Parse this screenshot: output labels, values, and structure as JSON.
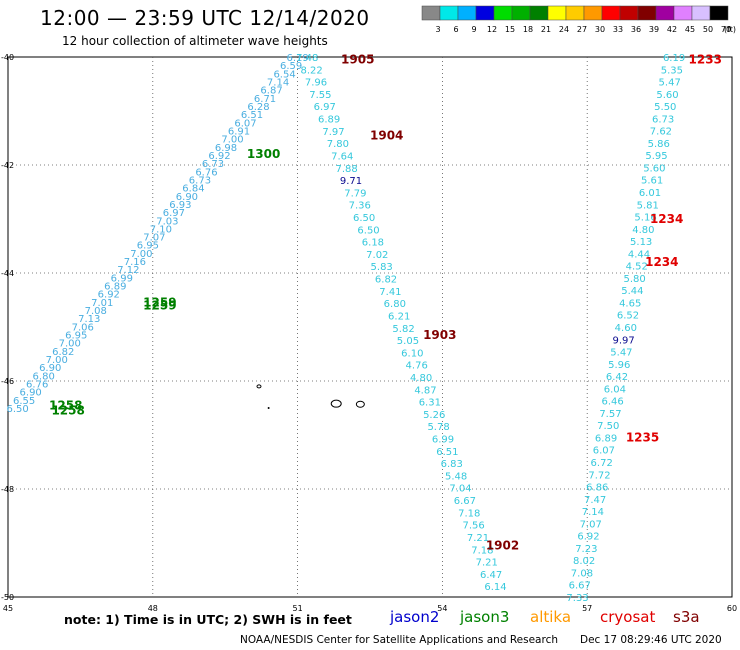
{
  "header": {
    "title": "12:00 — 23:59 UTC 12/14/2020",
    "subtitle": "12 hour collection of altimeter wave heights"
  },
  "color_scale": {
    "unit": "(ft)",
    "bins": [
      {
        "label": "3",
        "color": "#888888"
      },
      {
        "label": "6",
        "color": "#00e8e8"
      },
      {
        "label": "9",
        "color": "#00b0ff"
      },
      {
        "label": "12",
        "color": "#0000e0"
      },
      {
        "label": "15",
        "color": "#00dd00"
      },
      {
        "label": "18",
        "color": "#00b000"
      },
      {
        "label": "21",
        "color": "#008000"
      },
      {
        "label": "24",
        "color": "#ffff00"
      },
      {
        "label": "27",
        "color": "#ffcc00"
      },
      {
        "label": "30",
        "color": "#ff9900"
      },
      {
        "label": "33",
        "color": "#ff0000"
      },
      {
        "label": "36",
        "color": "#c00000"
      },
      {
        "label": "39",
        "color": "#800000"
      },
      {
        "label": "42",
        "color": "#a000a0"
      },
      {
        "label": "45",
        "color": "#e080ff"
      },
      {
        "label": "50",
        "color": "#d8c0ff"
      },
      {
        "label": "70",
        "color": "#000000"
      }
    ]
  },
  "map": {
    "lon_ticks": [
      "45",
      "48",
      "51",
      "54",
      "57",
      "60"
    ],
    "lat_ticks": [
      "-40",
      "-42",
      "-44",
      "-46",
      "-48",
      "-50"
    ]
  },
  "tracks": [
    {
      "values": [
        "6.19",
        "6.59",
        "6.54",
        "7.14",
        "6.87",
        "6.71",
        "6.28",
        "6.51",
        "6.07",
        "6.91",
        "7.00",
        "6.98",
        "6.92",
        "6.73",
        "6.76",
        "6.73",
        "6.84",
        "6.90",
        "6.93",
        "6.97",
        "7.03",
        "7.10",
        "7.07",
        "6.95",
        "7.00",
        "7.16",
        "7.12",
        "6.99",
        "6.89",
        "6.92",
        "7.01",
        "7.08",
        "7.13",
        "7.06",
        "6.95",
        "7.00",
        "6.82",
        "7.00",
        "6.90",
        "6.80",
        "6.76",
        "6.90",
        "6.55",
        "6.50"
      ],
      "start": [
        51.0,
        -40.0
      ],
      "end": [
        45.2,
        -46.5
      ],
      "color": "#4aaee0"
    },
    {
      "values": [
        "7.48",
        "8.22",
        "7.96",
        "7.55",
        "6.97",
        "6.89",
        "7.97",
        "7.80",
        "7.64",
        "7.88",
        "9.71",
        "7.79",
        "7.36",
        "6.50",
        "6.50",
        "6.18",
        "7.02",
        "5.83",
        "6.82",
        "7.41",
        "6.80",
        "6.21",
        "5.82",
        "5.05",
        "6.10",
        "4.76",
        "4.80",
        "4.87",
        "6.31",
        "5.26",
        "5.78",
        "6.99",
        "6.51",
        "6.83",
        "5.48",
        "7.04",
        "6.67",
        "7.18",
        "7.56",
        "7.21",
        "7.18",
        "7.21",
        "6.47",
        "6.14"
      ],
      "start": [
        51.2,
        -40.0
      ],
      "end": [
        55.1,
        -49.8
      ],
      "color": "#35c8dc",
      "highlight": {
        "value": "9.71",
        "color": "#0a0a8e"
      }
    },
    {
      "values": [
        "6.19",
        "5.35",
        "5.47",
        "5.60",
        "5.50",
        "6.73",
        "7.62",
        "5.86",
        "5.95",
        "5.60",
        "5.61",
        "6.01",
        "5.81",
        "5.16",
        "4.80",
        "5.13",
        "4.44",
        "4.52",
        "5.80",
        "5.44",
        "4.65",
        "6.52",
        "4.60",
        "9.97",
        "5.47",
        "5.96",
        "6.42",
        "6.04",
        "6.46",
        "7.57",
        "7.50",
        "6.89",
        "6.07",
        "6.72",
        "7.72",
        "6.86",
        "7.47",
        "7.14",
        "7.07",
        "6.92",
        "7.23",
        "8.02",
        "7.08",
        "6.67",
        "7.33"
      ],
      "start": [
        58.8,
        -40.0
      ],
      "end": [
        56.8,
        -50.0
      ],
      "color": "#35c8dc",
      "highlight": {
        "value": "9.97",
        "color": "#0a0a8e"
      }
    }
  ],
  "time_labels": [
    {
      "text": "1905",
      "lon": 51.9,
      "lat": -40.05,
      "color": "#800000"
    },
    {
      "text": "1904",
      "lon": 52.5,
      "lat": -41.45,
      "color": "#800000"
    },
    {
      "text": "1903",
      "lon": 53.6,
      "lat": -45.15,
      "color": "#800000"
    },
    {
      "text": "1902",
      "lon": 54.9,
      "lat": -49.05,
      "color": "#800000"
    },
    {
      "text": "1300",
      "lon": 49.95,
      "lat": -41.8,
      "color": "#008000"
    },
    {
      "text": "1259",
      "lon": 47.8,
      "lat": -44.55,
      "color": "#008000"
    },
    {
      "text": "1259",
      "lon": 47.8,
      "lat": -44.6,
      "color": "#008000"
    },
    {
      "text": "1258",
      "lon": 45.85,
      "lat": -46.45,
      "color": "#008000"
    },
    {
      "text": "1258",
      "lon": 45.9,
      "lat": -46.55,
      "color": "#008000"
    },
    {
      "text": "1233",
      "lon": 59.1,
      "lat": -40.05,
      "color": "#e00000"
    },
    {
      "text": "1234",
      "lon": 58.3,
      "lat": -43.0,
      "color": "#e00000"
    },
    {
      "text": "1234",
      "lon": 58.2,
      "lat": -43.8,
      "color": "#e00000"
    },
    {
      "text": "1235",
      "lon": 57.8,
      "lat": -47.05,
      "color": "#e00000"
    }
  ],
  "footer": {
    "note": "note:  1) Time is in UTC;  2) SWH is in feet",
    "satellites": [
      {
        "name": "jason2",
        "color": "#0000cc"
      },
      {
        "name": "jason3",
        "color": "#008000"
      },
      {
        "name": "altika",
        "color": "#ff9900"
      },
      {
        "name": "cryosat",
        "color": "#e00000"
      },
      {
        "name": "s3a",
        "color": "#800000"
      }
    ],
    "credit": "NOAA/NESDIS Center for Satellite Applications and Research",
    "timestamp": "Dec 17 08:29:46 UTC 2020"
  }
}
